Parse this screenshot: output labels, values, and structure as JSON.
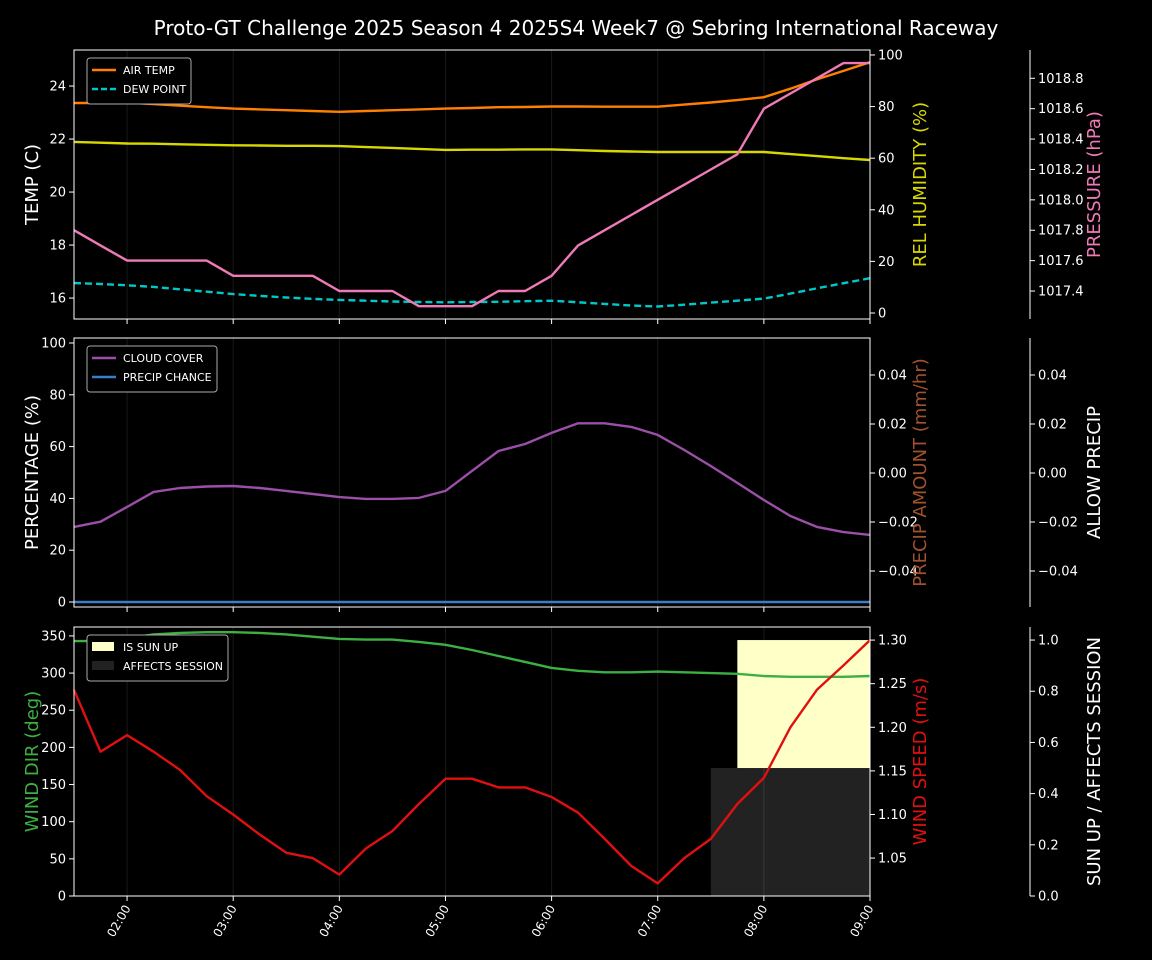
{
  "title": "Proto-GT Challenge  2025 Season 4 2025S4 Week7 @ Sebring International Raceway",
  "x_tick_labels": [
    "02:00",
    "03:00",
    "04:00",
    "05:00",
    "06:00",
    "07:00",
    "08:00",
    "09:00"
  ],
  "chart_data": [
    {
      "type": "line",
      "x_start": "01:30",
      "x_end": "09:00",
      "x_step_minutes": 15,
      "legend_placement": "top-left",
      "axes": [
        {
          "label": "TEMP (C)",
          "color": "#ffffff",
          "side": "left",
          "range": [
            15.21,
            25.36
          ],
          "ticks": [
            16,
            18,
            20,
            22,
            24
          ],
          "tick_labels": [
            "16",
            "18",
            "20",
            "22",
            "24"
          ]
        },
        {
          "label": "REL HUMIDITY (%)",
          "color": "#d8d800",
          "side": "right",
          "range": [
            -2.33,
            101.93
          ],
          "ticks": [
            0,
            20,
            40,
            60,
            80,
            100
          ],
          "tick_labels": [
            "0",
            "20",
            "40",
            "60",
            "80",
            "100"
          ]
        },
        {
          "label": "PRESSURE (hPa)",
          "color": "#f07ab8",
          "side": "outer-right",
          "range": [
            1017.216,
            1018.986
          ],
          "ticks": [
            1017.4,
            1017.6,
            1017.8,
            1018.0,
            1018.2,
            1018.4,
            1018.6,
            1018.8
          ],
          "tick_labels": [
            "1017.4",
            "1017.6",
            "1017.8",
            "1018.0",
            "1018.2",
            "1018.4",
            "1018.6",
            "1018.8"
          ]
        }
      ],
      "series": [
        {
          "name": "AIR TEMP",
          "axis": 0,
          "color": "#ff8000",
          "dashed": false,
          "legend": true,
          "values": [
            23.36,
            23.36,
            23.37,
            23.32,
            23.26,
            23.2,
            23.15,
            23.12,
            23.09,
            23.06,
            23.03,
            23.06,
            23.09,
            23.12,
            23.15,
            23.17,
            23.2,
            23.21,
            23.23,
            23.23,
            23.22,
            23.22,
            23.22,
            23.3,
            23.38,
            23.47,
            23.58,
            23.9,
            24.25,
            24.57,
            24.9
          ]
        },
        {
          "name": "DEW POINT",
          "axis": 0,
          "color": "#00c8c8",
          "dashed": true,
          "legend": true,
          "values": [
            16.57,
            16.53,
            16.48,
            16.42,
            16.33,
            16.24,
            16.15,
            16.08,
            16.02,
            15.97,
            15.93,
            15.9,
            15.87,
            15.85,
            15.84,
            15.85,
            15.86,
            15.88,
            15.9,
            15.84,
            15.78,
            15.72,
            15.68,
            15.75,
            15.83,
            15.9,
            15.98,
            16.17,
            16.37,
            16.56,
            16.75
          ]
        },
        {
          "name": "REL HUMIDITY",
          "axis": 1,
          "color": "#d8d800",
          "dashed": false,
          "legend": false,
          "values": [
            66.3,
            66,
            65.7,
            65.6,
            65.4,
            65.2,
            65,
            64.9,
            64.8,
            64.8,
            64.7,
            64.3,
            64,
            63.6,
            63.2,
            63.3,
            63.3,
            63.4,
            63.4,
            63.1,
            62.8,
            62.6,
            62.4,
            62.4,
            62.4,
            62.4,
            62.4,
            61.6,
            60.8,
            60.0,
            59.3
          ]
        },
        {
          "name": "PRESSURE",
          "axis": 2,
          "color": "#f07ab8",
          "dashed": false,
          "legend": false,
          "values": [
            1017.8,
            1017.7,
            1017.6,
            1017.6,
            1017.6,
            1017.6,
            1017.5,
            1017.5,
            1017.5,
            1017.5,
            1017.4,
            1017.4,
            1017.4,
            1017.3,
            1017.3,
            1017.3,
            1017.4,
            1017.4,
            1017.5,
            1017.7,
            1017.8,
            1017.9,
            1018.0,
            1018.1,
            1018.2,
            1018.3,
            1018.6,
            1018.7,
            1018.8,
            1018.9,
            1018.9
          ]
        }
      ]
    },
    {
      "type": "line",
      "x_start": "01:30",
      "x_end": "09:00",
      "x_step_minutes": 15,
      "legend_placement": "top-left",
      "axes": [
        {
          "label": "PERCENTAGE (%)",
          "color": "#ffffff",
          "side": "left",
          "range": [
            -1.93,
            101.93
          ],
          "ticks": [
            0,
            20,
            40,
            60,
            80,
            100
          ],
          "tick_labels": [
            "0",
            "20",
            "40",
            "60",
            "80",
            "100"
          ]
        },
        {
          "label": "PRECIP AMOUNT (mm/hr)",
          "color": "#a0522d",
          "side": "right",
          "range": [
            -0.0547,
            0.0551
          ],
          "ticks": [
            -0.04,
            -0.02,
            0,
            0.02,
            0.04
          ],
          "tick_labels": [
            "−0.04",
            "−0.02",
            "0.00",
            "0.02",
            "0.04"
          ]
        },
        {
          "label": "ALLOW PRECIP",
          "color": "#ffffff",
          "side": "outer-right",
          "range": [
            -0.0547,
            0.0551
          ],
          "ticks": [
            -0.04,
            -0.02,
            0,
            0.02,
            0.04
          ],
          "tick_labels": [
            "−0.04",
            "−0.02",
            "0.00",
            "0.02",
            "0.04"
          ]
        }
      ],
      "series": [
        {
          "name": "CLOUD COVER",
          "axis": 0,
          "color": "#9b4fa8",
          "dashed": false,
          "legend": true,
          "values": [
            29,
            31,
            36.7,
            42.5,
            44,
            44.6,
            44.8,
            44,
            42.9,
            41.7,
            40.5,
            39.8,
            39.8,
            40.2,
            42.9,
            50.6,
            58.3,
            61,
            65.3,
            69,
            69,
            67.6,
            64.5,
            58.7,
            52.5,
            46,
            39.4,
            33.2,
            29,
            27,
            25.9
          ]
        },
        {
          "name": "PRECIP CHANCE",
          "axis": 0,
          "color": "#3a7dc9",
          "dashed": false,
          "legend": true,
          "values": [
            0,
            0,
            0,
            0,
            0,
            0,
            0,
            0,
            0,
            0,
            0,
            0,
            0,
            0,
            0,
            0,
            0,
            0,
            0,
            0,
            0,
            0,
            0,
            0,
            0,
            0,
            0,
            0,
            0,
            0,
            0
          ]
        }
      ]
    },
    {
      "type": "line",
      "x_start": "01:30",
      "x_end": "09:00",
      "x_step_minutes": 15,
      "legend_placement": "top-left",
      "axes": [
        {
          "label": "WIND DIR (deg)",
          "color": "#3cb043",
          "side": "left",
          "range": [
            0,
            362
          ],
          "ticks": [
            0,
            50,
            100,
            150,
            200,
            250,
            300,
            350
          ],
          "tick_labels": [
            "0",
            "50",
            "100",
            "150",
            "200",
            "250",
            "300",
            "350"
          ]
        },
        {
          "label": "WIND SPEED (m/s)",
          "color": "#e01010",
          "side": "right",
          "range": [
            1.0065,
            1.315
          ],
          "ticks": [
            1.05,
            1.1,
            1.15,
            1.2,
            1.25,
            1.3
          ],
          "tick_labels": [
            "1.05",
            "1.10",
            "1.15",
            "1.20",
            "1.25",
            "1.30"
          ]
        },
        {
          "label": "SUN UP / AFFECTS SESSION",
          "color": "#ffffff",
          "side": "outer-right",
          "range": [
            0,
            1.051
          ],
          "ticks": [
            0,
            0.2,
            0.4,
            0.6,
            0.8,
            1.0
          ],
          "tick_labels": [
            "0.0",
            "0.2",
            "0.4",
            "0.6",
            "0.8",
            "1.0"
          ]
        }
      ],
      "fills": [
        {
          "name": "IS SUN UP",
          "axis": 2,
          "color": "#ffffc8",
          "from": "07:45",
          "to": "09:00",
          "value": 1.0,
          "legend": true
        },
        {
          "name": "AFFECTS SESSION",
          "axis": 2,
          "color": "#222222",
          "from": "07:30",
          "to": "09:00",
          "value": 0.5,
          "legend": true
        }
      ],
      "series": [
        {
          "name": "WIND DIR",
          "axis": 0,
          "color": "#3cb043",
          "dashed": false,
          "legend": false,
          "values": [
            343,
            343,
            347,
            352,
            354,
            355,
            355,
            354,
            352,
            349,
            346,
            345,
            345,
            342,
            338,
            331,
            323,
            315,
            307,
            303,
            301,
            301,
            302,
            301,
            300,
            299,
            296,
            295,
            295,
            295,
            296
          ]
        },
        {
          "name": "WIND SPEED",
          "axis": 1,
          "color": "#e01010",
          "dashed": false,
          "legend": false,
          "values": [
            1.243,
            1.172,
            1.191,
            1.172,
            1.151,
            1.121,
            1.1,
            1.077,
            1.056,
            1.05,
            1.031,
            1.061,
            1.081,
            1.112,
            1.141,
            1.141,
            1.131,
            1.131,
            1.12,
            1.102,
            1.072,
            1.041,
            1.021,
            1.05,
            1.072,
            1.112,
            1.142,
            1.2,
            1.243,
            1.271,
            1.3
          ]
        }
      ]
    }
  ]
}
